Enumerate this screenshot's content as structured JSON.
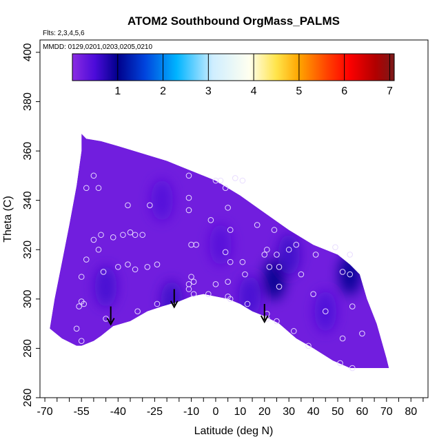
{
  "chart_data": {
    "type": "heatmap",
    "title": "ATOM2 Southbound OrgMass_PALMS",
    "annotations": {
      "flights": "Flts: 2,3,4,5,6",
      "dates": "MMDD: 0129,0201,0203,0205,0210"
    },
    "xlabel": "Latitude (deg N)",
    "ylabel": "Theta (C)",
    "xlim": [
      -72,
      87
    ],
    "ylim": [
      260,
      405
    ],
    "xticks": [
      -70,
      -55,
      -40,
      -25,
      -10,
      0,
      10,
      20,
      30,
      40,
      50,
      60,
      70,
      80
    ],
    "xtick_labels": [
      "-70",
      "-55",
      "-40",
      "-25",
      "-10",
      "0",
      "10",
      "20",
      "30",
      "40",
      "50",
      "60",
      "70",
      "80"
    ],
    "xticks_minor": [
      -65,
      -60,
      -50,
      -45,
      -35,
      -30,
      -20,
      -15,
      -5,
      5,
      15,
      25,
      35,
      45,
      55,
      65,
      75,
      85
    ],
    "yticks": [
      260,
      280,
      300,
      320,
      340,
      360,
      380,
      400
    ],
    "ytick_labels": [
      "260",
      "280",
      "300",
      "320",
      "340",
      "360",
      "380",
      "400"
    ],
    "grid": false,
    "colorbar": {
      "range": [
        0,
        7.1
      ],
      "ticks": [
        1,
        2,
        3,
        4,
        5,
        6,
        7
      ],
      "tick_labels": [
        "1",
        "2",
        "3",
        "4",
        "5",
        "6",
        "7"
      ],
      "stops": [
        {
          "v": 0.0,
          "color": "#8a2be2"
        },
        {
          "v": 0.5,
          "color": "#4b0bd9"
        },
        {
          "v": 1.0,
          "color": "#00008b"
        },
        {
          "v": 1.6,
          "color": "#0044dd"
        },
        {
          "v": 2.3,
          "color": "#00b4ff"
        },
        {
          "v": 3.1,
          "color": "#cfeeff"
        },
        {
          "v": 3.9,
          "color": "#fffff0"
        },
        {
          "v": 4.5,
          "color": "#ffe44a"
        },
        {
          "v": 5.0,
          "color": "#ffa500"
        },
        {
          "v": 5.6,
          "color": "#ff4500"
        },
        {
          "v": 6.1,
          "color": "#ff0000"
        },
        {
          "v": 6.7,
          "color": "#b00000"
        },
        {
          "v": 7.1,
          "color": "#7a1a1a"
        }
      ]
    },
    "field": {
      "background_value": 0.2,
      "top_edge": [
        [
          -55,
          367
        ],
        [
          -53,
          365
        ],
        [
          -47,
          364
        ],
        [
          -40,
          362
        ],
        [
          -30,
          359
        ],
        [
          -20,
          356
        ],
        [
          -10,
          352
        ],
        [
          0,
          348
        ],
        [
          10,
          342
        ],
        [
          20,
          335
        ],
        [
          30,
          328
        ],
        [
          40,
          322
        ],
        [
          45,
          320
        ],
        [
          50,
          318
        ],
        [
          55,
          314
        ],
        [
          59,
          310
        ],
        [
          62,
          300
        ],
        [
          66,
          290
        ],
        [
          70,
          276
        ],
        [
          71,
          272
        ]
      ],
      "bottom_edge": [
        [
          71,
          272
        ],
        [
          65,
          272
        ],
        [
          55,
          272
        ],
        [
          48,
          275
        ],
        [
          40,
          280
        ],
        [
          33,
          284
        ],
        [
          26,
          290
        ],
        [
          20,
          293
        ],
        [
          15,
          295
        ],
        [
          10,
          298
        ],
        [
          5,
          300
        ],
        [
          0,
          301
        ],
        [
          -5,
          302
        ],
        [
          -10,
          301
        ],
        [
          -15,
          299
        ],
        [
          -22,
          297
        ],
        [
          -28,
          295
        ],
        [
          -35,
          291
        ],
        [
          -42,
          289
        ],
        [
          -47,
          285
        ],
        [
          -50,
          283
        ],
        [
          -55,
          281
        ],
        [
          -57,
          281
        ],
        [
          -63,
          284
        ],
        [
          -68,
          288
        ]
      ],
      "left_edge": [
        [
          -68,
          288
        ],
        [
          -66,
          300
        ],
        [
          -63,
          315
        ],
        [
          -60,
          330
        ],
        [
          -57,
          346
        ],
        [
          -55,
          360
        ],
        [
          -55,
          367
        ]
      ],
      "anomalies": [
        {
          "lat": 24,
          "theta": 308,
          "value": 1.0
        },
        {
          "lat": 55,
          "theta": 310,
          "value": 1.05
        },
        {
          "lat": -18,
          "theta": 299,
          "value": 0.6
        },
        {
          "lat": 14,
          "theta": 301,
          "value": 0.55
        },
        {
          "lat": -22,
          "theta": 340,
          "value": 0.45
        },
        {
          "lat": 2,
          "theta": 322,
          "value": 0.42
        },
        {
          "lat": -45,
          "theta": 305,
          "value": 0.55
        },
        {
          "lat": 30,
          "theta": 318,
          "value": 0.6
        },
        {
          "lat": 45,
          "theta": 295,
          "value": 0.5
        }
      ]
    },
    "samples": [
      {
        "lat": -53,
        "theta": 345
      },
      {
        "lat": -50,
        "theta": 350
      },
      {
        "lat": -48,
        "theta": 345
      },
      {
        "lat": -55,
        "theta": 309
      },
      {
        "lat": -53,
        "theta": 316
      },
      {
        "lat": -50,
        "theta": 324
      },
      {
        "lat": -47,
        "theta": 326
      },
      {
        "lat": -48,
        "theta": 320
      },
      {
        "lat": -42,
        "theta": 325
      },
      {
        "lat": -38,
        "theta": 326
      },
      {
        "lat": -35,
        "theta": 327
      },
      {
        "lat": -33,
        "theta": 326
      },
      {
        "lat": -30,
        "theta": 326
      },
      {
        "lat": -36,
        "theta": 338
      },
      {
        "lat": -27,
        "theta": 338
      },
      {
        "lat": -40,
        "theta": 313
      },
      {
        "lat": -46,
        "theta": 311
      },
      {
        "lat": -36,
        "theta": 314
      },
      {
        "lat": -33,
        "theta": 312
      },
      {
        "lat": -28,
        "theta": 313
      },
      {
        "lat": -24,
        "theta": 314
      },
      {
        "lat": -56,
        "theta": 297
      },
      {
        "lat": -55,
        "theta": 299
      },
      {
        "lat": -54,
        "theta": 298
      },
      {
        "lat": -57,
        "theta": 288
      },
      {
        "lat": -55,
        "theta": 283
      },
      {
        "lat": -45,
        "theta": 292
      },
      {
        "lat": -32,
        "theta": 295
      },
      {
        "lat": -24,
        "theta": 298
      },
      {
        "lat": -11,
        "theta": 350
      },
      {
        "lat": -11,
        "theta": 341
      },
      {
        "lat": -11,
        "theta": 336
      },
      {
        "lat": -10,
        "theta": 322
      },
      {
        "lat": -8,
        "theta": 322
      },
      {
        "lat": -10,
        "theta": 309
      },
      {
        "lat": -11,
        "theta": 306
      },
      {
        "lat": -11,
        "theta": 304
      },
      {
        "lat": -9,
        "theta": 307
      },
      {
        "lat": -9,
        "theta": 302
      },
      {
        "lat": -3,
        "theta": 302
      },
      {
        "lat": 0,
        "theta": 306
      },
      {
        "lat": 0,
        "theta": 348
      },
      {
        "lat": 2,
        "theta": 348
      },
      {
        "lat": 4,
        "theta": 345
      },
      {
        "lat": 5,
        "theta": 337
      },
      {
        "lat": -2,
        "theta": 332
      },
      {
        "lat": 6,
        "theta": 328
      },
      {
        "lat": 4,
        "theta": 319
      },
      {
        "lat": 6,
        "theta": 315
      },
      {
        "lat": 5,
        "theta": 307
      },
      {
        "lat": 5,
        "theta": 301
      },
      {
        "lat": 6,
        "theta": 300
      },
      {
        "lat": 8,
        "theta": 349
      },
      {
        "lat": 11,
        "theta": 348
      },
      {
        "lat": 11,
        "theta": 315
      },
      {
        "lat": 12,
        "theta": 310
      },
      {
        "lat": 13,
        "theta": 298
      },
      {
        "lat": 17,
        "theta": 330
      },
      {
        "lat": 20,
        "theta": 318
      },
      {
        "lat": 21,
        "theta": 320
      },
      {
        "lat": 22,
        "theta": 313
      },
      {
        "lat": 24,
        "theta": 328
      },
      {
        "lat": 25,
        "theta": 318
      },
      {
        "lat": 26,
        "theta": 313
      },
      {
        "lat": 26,
        "theta": 305
      },
      {
        "lat": 30,
        "theta": 320
      },
      {
        "lat": 33,
        "theta": 322
      },
      {
        "lat": 35,
        "theta": 310
      },
      {
        "lat": 21,
        "theta": 294
      },
      {
        "lat": 21,
        "theta": 292
      },
      {
        "lat": 25,
        "theta": 291
      },
      {
        "lat": 32,
        "theta": 287
      },
      {
        "lat": 40,
        "theta": 302
      },
      {
        "lat": 41,
        "theta": 318
      },
      {
        "lat": 45,
        "theta": 295
      },
      {
        "lat": 49,
        "theta": 321
      },
      {
        "lat": 55,
        "theta": 318
      },
      {
        "lat": 55,
        "theta": 310
      },
      {
        "lat": 52,
        "theta": 311
      },
      {
        "lat": 56,
        "theta": 297
      },
      {
        "lat": 60,
        "theta": 286
      },
      {
        "lat": 52,
        "theta": 284
      },
      {
        "lat": 38,
        "theta": 281
      },
      {
        "lat": 51,
        "theta": 274
      },
      {
        "lat": 56,
        "theta": 272
      }
    ],
    "arrows": [
      {
        "lat": -43,
        "theta_start": 297,
        "theta_end": 290
      },
      {
        "lat": -17,
        "theta_start": 304,
        "theta_end": 297
      },
      {
        "lat": 20,
        "theta_start": 298,
        "theta_end": 291
      }
    ]
  }
}
